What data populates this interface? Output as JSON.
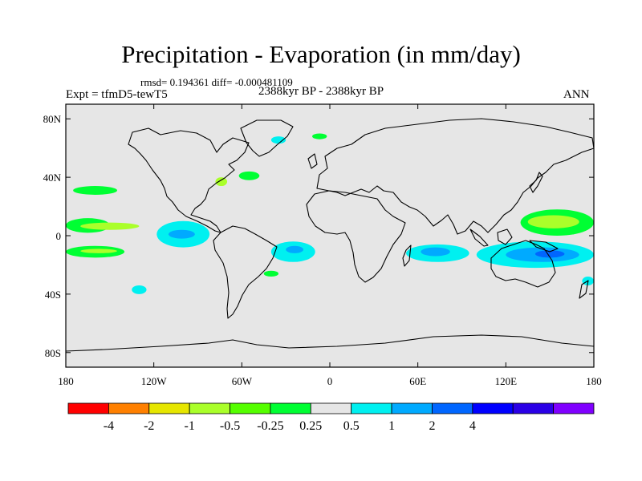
{
  "title": "Precipitation - Evaporation (in mm/day)",
  "stats": "rmsd= 0.194361 diff= -0.000481109",
  "period": "2388kyr BP - 2388kyr BP",
  "experiment": "Expt = tfmD5-tewT5",
  "season": "ANN",
  "chart_data": {
    "type": "heatmap",
    "title": "Precipitation - Evaporation (in mm/day)",
    "xlabel": "",
    "ylabel": "",
    "xlim": [
      -180,
      180
    ],
    "ylim": [
      -90,
      90
    ],
    "x_ticks": [
      {
        "value": -180,
        "label": "180"
      },
      {
        "value": -120,
        "label": "120W"
      },
      {
        "value": -60,
        "label": "60W"
      },
      {
        "value": 0,
        "label": "0"
      },
      {
        "value": 60,
        "label": "60E"
      },
      {
        "value": 120,
        "label": "120E"
      },
      {
        "value": 180,
        "label": "180"
      }
    ],
    "y_ticks": [
      {
        "value": 80,
        "label": "80N"
      },
      {
        "value": 40,
        "label": "40N"
      },
      {
        "value": 0,
        "label": "0"
      },
      {
        "value": -40,
        "label": "40S"
      },
      {
        "value": -80,
        "label": "80S"
      }
    ],
    "colorbar": {
      "colors": [
        "#ff0000",
        "#ff8000",
        "#e6e600",
        "#aaff2a",
        "#55ff00",
        "#00ff33",
        "#e6e6e6",
        "#00f0f0",
        "#00aaff",
        "#0066ff",
        "#0000ff",
        "#2a00e6",
        "#8000ff"
      ],
      "labels": [
        "-4",
        "-2",
        "-1",
        "-0.5",
        "-0.25",
        "0.25",
        "0.5",
        "1",
        "2",
        "4"
      ]
    },
    "anomaly_regions": [
      {
        "lon": [
          -180,
          -150
        ],
        "lat": [
          2,
          12
        ],
        "color": "#00ff33"
      },
      {
        "lon": [
          -170,
          -130
        ],
        "lat": [
          4,
          9
        ],
        "color": "#aaff2a"
      },
      {
        "lon": [
          -180,
          -140
        ],
        "lat": [
          -15,
          -7
        ],
        "color": "#00ff33"
      },
      {
        "lon": [
          -170,
          -145
        ],
        "lat": [
          -12,
          -9
        ],
        "color": "#aaff2a"
      },
      {
        "lon": [
          -175,
          -145
        ],
        "lat": [
          28,
          34
        ],
        "color": "#00ff33"
      },
      {
        "lon": [
          -118,
          -82
        ],
        "lat": [
          -8,
          10
        ],
        "color": "#00f0f0"
      },
      {
        "lon": [
          -110,
          -92
        ],
        "lat": [
          -2,
          4
        ],
        "color": "#00aaff"
      },
      {
        "lon": [
          -40,
          -10
        ],
        "lat": [
          -18,
          -4
        ],
        "color": "#00f0f0"
      },
      {
        "lon": [
          -30,
          -18
        ],
        "lat": [
          -12,
          -7
        ],
        "color": "#00aaff"
      },
      {
        "lon": [
          -62,
          -48
        ],
        "lat": [
          38,
          44
        ],
        "color": "#00ff33"
      },
      {
        "lon": [
          -78,
          -70
        ],
        "lat": [
          34,
          40
        ],
        "color": "#aaff2a"
      },
      {
        "lon": [
          52,
          95
        ],
        "lat": [
          -18,
          -6
        ],
        "color": "#00f0f0"
      },
      {
        "lon": [
          62,
          82
        ],
        "lat": [
          -14,
          -8
        ],
        "color": "#00aaff"
      },
      {
        "lon": [
          130,
          180
        ],
        "lat": [
          0,
          18
        ],
        "color": "#00ff33"
      },
      {
        "lon": [
          135,
          170
        ],
        "lat": [
          5,
          14
        ],
        "color": "#aaff2a"
      },
      {
        "lon": [
          100,
          180
        ],
        "lat": [
          -22,
          -4
        ],
        "color": "#00f0f0"
      },
      {
        "lon": [
          120,
          170
        ],
        "lat": [
          -18,
          -8
        ],
        "color": "#00aaff"
      },
      {
        "lon": [
          140,
          160
        ],
        "lat": [
          -15,
          -10
        ],
        "color": "#0066ff"
      },
      {
        "lon": [
          -135,
          -125
        ],
        "lat": [
          -40,
          -34
        ],
        "color": "#00f0f0"
      },
      {
        "lon": [
          -45,
          -35
        ],
        "lat": [
          -28,
          -24
        ],
        "color": "#00ff33"
      },
      {
        "lon": [
          -40,
          -30
        ],
        "lat": [
          63,
          68
        ],
        "color": "#00f0f0"
      },
      {
        "lon": [
          -12,
          -2
        ],
        "lat": [
          66,
          70
        ],
        "color": "#00ff33"
      },
      {
        "lon": [
          172,
          180
        ],
        "lat": [
          -34,
          -28
        ],
        "color": "#00f0f0"
      }
    ]
  }
}
